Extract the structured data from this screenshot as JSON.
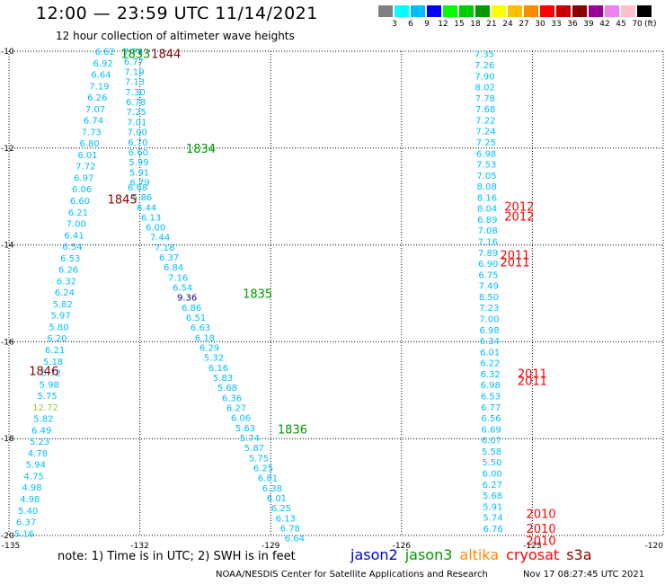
{
  "header": {
    "title": "12:00 — 23:59 UTC 11/14/2021",
    "subtitle": "12 hour collection of altimeter wave heights"
  },
  "colorbar": {
    "unit": "(ft)",
    "colors": [
      "#808080",
      "#00ffff",
      "#00bfff",
      "#0000ff",
      "#00ff00",
      "#00cc00",
      "#009900",
      "#ffff00",
      "#ffbf00",
      "#ff8c00",
      "#ff0000",
      "#cc0000",
      "#8b0000",
      "#990099",
      "#ee82ee",
      "#ffc0cb",
      "#000000"
    ],
    "labels": [
      "3",
      "6",
      "9",
      "12",
      "15",
      "18",
      "21",
      "24",
      "27",
      "30",
      "33",
      "36",
      "39",
      "42",
      "45",
      "70"
    ]
  },
  "axes": {
    "lat_labels": [
      "-10",
      "-12",
      "-14",
      "-16",
      "-18",
      "-20"
    ],
    "lon_labels": [
      "-135",
      "-132",
      "-129",
      "-126",
      "-123",
      "-120"
    ]
  },
  "map": {
    "pass_labels": [
      {
        "text": "1833",
        "color": "#009900",
        "lat": -10.05,
        "lon": -132.1
      },
      {
        "text": "1844",
        "color": "#8b0000",
        "lat": -10.05,
        "lon": -131.4
      },
      {
        "text": "1834",
        "color": "#009900",
        "lat": -12.0,
        "lon": -130.6
      },
      {
        "text": "1845",
        "color": "#8b0000",
        "lat": -13.05,
        "lon": -132.4
      },
      {
        "text": "1835",
        "color": "#009900",
        "lat": -15.0,
        "lon": -129.3
      },
      {
        "text": "1846",
        "color": "#8b0000",
        "lat": -16.6,
        "lon": -134.2
      },
      {
        "text": "1836",
        "color": "#009900",
        "lat": -17.8,
        "lon": -128.5
      },
      {
        "text": "2012",
        "color": "#ff0000",
        "lat": -13.2,
        "lon": -123.3
      },
      {
        "text": "2012",
        "color": "#ff0000",
        "lat": -13.4,
        "lon": -123.3
      },
      {
        "text": "2011",
        "color": "#ff0000",
        "lat": -14.2,
        "lon": -123.4
      },
      {
        "text": "2011",
        "color": "#ff0000",
        "lat": -14.35,
        "lon": -123.4
      },
      {
        "text": "2011",
        "color": "#ff0000",
        "lat": -16.65,
        "lon": -123.0
      },
      {
        "text": "2011",
        "color": "#ff0000",
        "lat": -16.8,
        "lon": -123.0
      },
      {
        "text": "2010",
        "color": "#ff0000",
        "lat": -19.55,
        "lon": -122.8
      },
      {
        "text": "2010",
        "color": "#ff0000",
        "lat": -19.85,
        "lon": -122.8
      },
      {
        "text": "2010",
        "color": "#ff0000",
        "lat": -20.1,
        "lon": -122.8
      }
    ],
    "tracks": [
      {
        "start": [
          -10.0,
          -132.8
        ],
        "end": [
          -19.95,
          -134.65
        ],
        "values": [
          "6.62",
          "6.92",
          "6.64",
          "7.19",
          "6.26",
          "7.07",
          "6.74",
          "7.73",
          "6.80",
          "6.01",
          "7.72",
          "6.97",
          "6.06",
          "6.60",
          "6.21",
          "7.00",
          "6.41",
          "6.54",
          "6.53",
          "6.26",
          "6.32",
          "6.24",
          "5.82",
          "5.97",
          "5.80",
          "6.20",
          "6.21",
          "5.18",
          "5.72",
          "5.98",
          "5.75",
          "12.72",
          "5.82",
          "6.49",
          "5.23",
          "4.78",
          "5.94",
          "4.75",
          "4.98",
          "4.98",
          "5.40",
          "6.37",
          "5.16"
        ]
      },
      {
        "start": [
          -10.0,
          -132.15
        ],
        "end": [
          -12.7,
          -132.0
        ],
        "values": [
          "7.74",
          "6.77",
          "7.19",
          "7.13",
          "7.30",
          "6.78",
          "7.25",
          "7.01",
          "7.00",
          "6.70",
          "6.60",
          "5.99",
          "5.91",
          "6.79"
        ]
      },
      {
        "start": [
          -12.8,
          -132.05
        ],
        "end": [
          -20.05,
          -128.45
        ],
        "values": [
          "6.68",
          "5.86",
          "6.44",
          "6.13",
          "6.00",
          "7.44",
          "7.18",
          "6.37",
          "6.84",
          "7.16",
          "6.54",
          "9.36",
          "6.86",
          "6.51",
          "6.63",
          "6.18",
          "6.29",
          "5.32",
          "6.16",
          "5.83",
          "5.68",
          "6.36",
          "6.27",
          "6.06",
          "5.63",
          "5.74",
          "5.87",
          "5.75",
          "6.25",
          "6.81",
          "6.38",
          "6.01",
          "6.25",
          "6.13",
          "6.78",
          "6.64"
        ]
      },
      {
        "start": [
          -10.05,
          -124.1
        ],
        "end": [
          -19.85,
          -123.9
        ],
        "values": [
          "7.35",
          "7.26",
          "7.90",
          "8.02",
          "7.78",
          "7.68",
          "7.22",
          "7.24",
          "7.25",
          "6.98",
          "7.53",
          "7.05",
          "8.08",
          "8.16",
          "8.04",
          "6.89",
          "7.08",
          "7.16",
          "7.89",
          "6.90",
          "6.75",
          "7.49",
          "8.50",
          "7.23",
          "7.00",
          "6.98",
          "6.34",
          "6.01",
          "6.22",
          "6.32",
          "6.98",
          "6.53",
          "6.77",
          "6.56",
          "6.69",
          "6.07",
          "5.58",
          "5.50",
          "6.00",
          "6.27",
          "5.68",
          "5.91",
          "5.74",
          "6.76"
        ]
      }
    ],
    "outliers": [
      {
        "text": "9.36",
        "color": "#00008b"
      },
      {
        "text": "12.72",
        "color": "#99cc33"
      }
    ]
  },
  "footer": {
    "note": "note: 1) Time is in UTC; 2) SWH is in feet",
    "legend": [
      {
        "name": "jason2",
        "color": "#0000cc"
      },
      {
        "name": "jason3",
        "color": "#009900"
      },
      {
        "name": "altika",
        "color": "#ff8c00"
      },
      {
        "name": "cryosat",
        "color": "#ff0000"
      },
      {
        "name": "s3a",
        "color": "#8b0000"
      }
    ],
    "credit": "NOAA/NESDIS Center for Satellite Applications and Research",
    "timestamp": "Nov 17 08:27:45 UTC 2021"
  }
}
